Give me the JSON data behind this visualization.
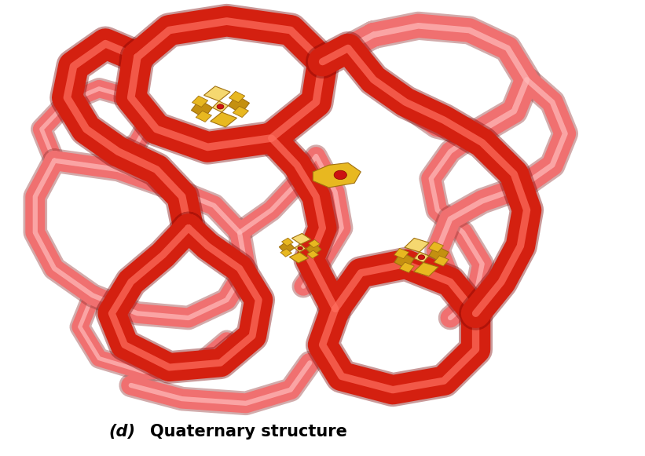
{
  "bg_color": "#ffffff",
  "fig_width": 8.21,
  "fig_height": 5.81,
  "dark_red": "#d42010",
  "dark_red_shadow": "#8b0000",
  "dark_red_highlight": "#ff6655",
  "light_pink": "#f07070",
  "light_pink_highlight": "#ffaaaa",
  "light_pink_shadow": "#c04040",
  "gold": "#e8b820",
  "gold_dark": "#a07010",
  "gold_light": "#f0d060",
  "label_fontsize": 15,
  "label_italic": "(d)",
  "label_bold": "Quaternary structure"
}
